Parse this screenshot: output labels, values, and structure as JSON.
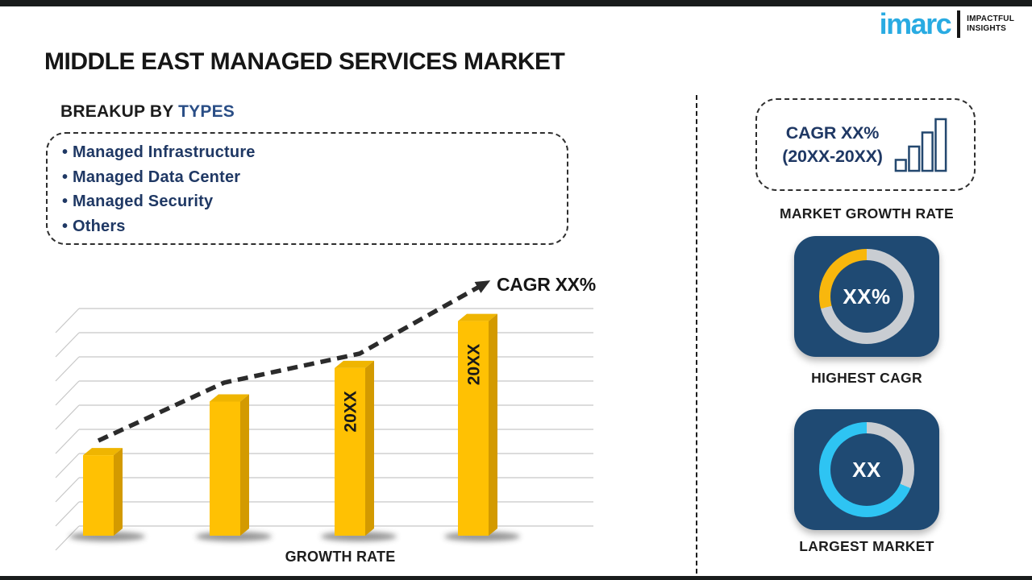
{
  "header": {
    "title": "MIDDLE EAST MANAGED SERVICES MARKET",
    "logo": {
      "brand": "imarc",
      "tagline_line1": "IMPACTFUL",
      "tagline_line2": "INSIGHTS",
      "brand_color": "#29ABE2"
    }
  },
  "breakup": {
    "heading_prefix": "BREAKUP BY ",
    "heading_highlight": "TYPES",
    "items": [
      "Managed Infrastructure",
      "Managed Data Center",
      "Managed Security",
      "Others"
    ]
  },
  "chart_data": {
    "type": "bar",
    "title": "",
    "xlabel": "GROWTH RATE",
    "categories": [
      "",
      "",
      "20XX",
      "20XX"
    ],
    "values": [
      30,
      50,
      62.5,
      80
    ],
    "ylim": [
      0,
      100
    ],
    "unit": "percent of plot height (placeholder template chart, no numeric axis shown)",
    "grid": true,
    "legend": false,
    "bar_color": "#FFC103",
    "bar_side_color": "#D39A00",
    "bar_top_color": "#EFB501",
    "trend": {
      "label": "CAGR XX%",
      "style": "dashed-arrow",
      "points": [
        [
          62,
          212
        ],
        [
          218,
          140
        ],
        [
          386,
          104
        ],
        [
          536,
          20
        ]
      ]
    }
  },
  "sidebar": {
    "growth_box": {
      "line1": "CAGR XX%",
      "line2": "(20XX-20XX)",
      "caption": "MARKET GROWTH RATE",
      "icon_color": "#24486F"
    },
    "highest_cagr": {
      "value": "XX%",
      "caption": "HIGHEST CAGR",
      "card_color": "#1F4A73",
      "ring": {
        "base_color": "#C9CDD2",
        "accent_color": "#F8B70D",
        "accent_from_deg": 255,
        "accent_to_deg": 360
      }
    },
    "largest_market": {
      "value": "XX",
      "caption": "LARGEST MARKET",
      "card_color": "#1F4A73",
      "ring": {
        "base_color": "#2EC4F3",
        "accent_color": "#C9CDD2",
        "accent_from_deg": 0,
        "accent_to_deg": 113
      }
    }
  }
}
